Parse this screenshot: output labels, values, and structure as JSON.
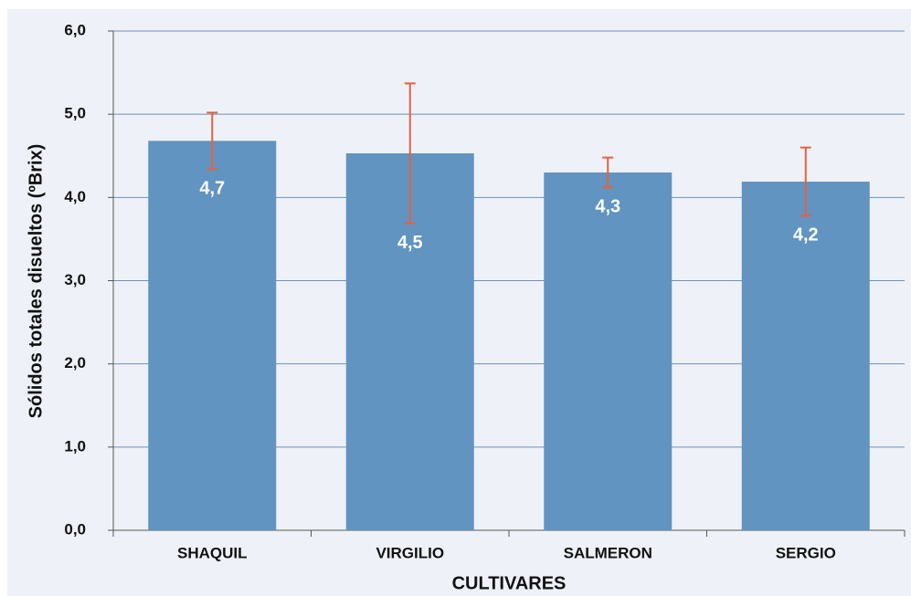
{
  "chart_data": {
    "type": "bar",
    "x_label": "CULTIVARES",
    "y_label": "Sólidos totales disueltos (ºBrix)",
    "categories": [
      "SHAQUIL",
      "VIRGILIO",
      "SALMERON",
      "SERGIO"
    ],
    "values": [
      4.68,
      4.53,
      4.3,
      4.19
    ],
    "value_labels": [
      "4,7",
      "4,5",
      "4,3",
      "4,2"
    ],
    "errors": [
      0.34,
      0.84,
      0.18,
      0.41
    ],
    "color": "#6194c0",
    "error_color": "#e8603c",
    "ylim": [
      0,
      6
    ],
    "yticks": [
      {
        "value": 0,
        "label": "0,0"
      },
      {
        "value": 1,
        "label": "1,0"
      },
      {
        "value": 2,
        "label": "2,0"
      },
      {
        "value": 3,
        "label": "3,0"
      },
      {
        "value": 4,
        "label": "4,0"
      },
      {
        "value": 5,
        "label": "5,0"
      },
      {
        "value": 6,
        "label": "6,0"
      }
    ],
    "grid": true
  }
}
